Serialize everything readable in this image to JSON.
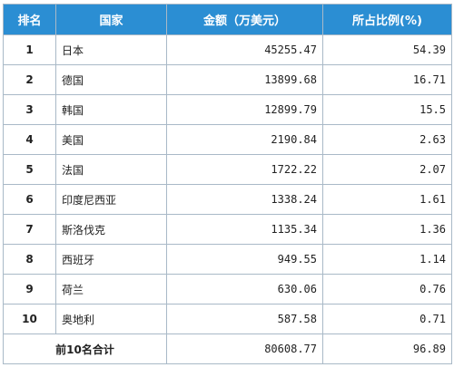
{
  "table": {
    "headers": {
      "rank": "排名",
      "country": "国家",
      "amount": "金额（万美元）",
      "share": "所占比例(%)"
    },
    "rows": [
      {
        "rank": "1",
        "country": "日本",
        "amount": "45255.47",
        "share": "54.39"
      },
      {
        "rank": "2",
        "country": "德国",
        "amount": "13899.68",
        "share": "16.71"
      },
      {
        "rank": "3",
        "country": "韩国",
        "amount": "12899.79",
        "share": "15.5"
      },
      {
        "rank": "4",
        "country": "美国",
        "amount": "2190.84",
        "share": "2.63"
      },
      {
        "rank": "5",
        "country": "法国",
        "amount": "1722.22",
        "share": "2.07"
      },
      {
        "rank": "6",
        "country": "印度尼西亚",
        "amount": "1338.24",
        "share": "1.61"
      },
      {
        "rank": "7",
        "country": "斯洛伐克",
        "amount": "1135.34",
        "share": "1.36"
      },
      {
        "rank": "8",
        "country": "西班牙",
        "amount": "949.55",
        "share": "1.14"
      },
      {
        "rank": "9",
        "country": "荷兰",
        "amount": "630.06",
        "share": "0.76"
      },
      {
        "rank": "10",
        "country": "奥地利",
        "amount": "587.58",
        "share": "0.71"
      }
    ],
    "total": {
      "label": "前10名合计",
      "amount": "80608.77",
      "share": "96.89"
    }
  },
  "colors": {
    "header_bg": "#2b8ed3",
    "header_text": "#ffffff",
    "border": "#a9b9c7"
  }
}
